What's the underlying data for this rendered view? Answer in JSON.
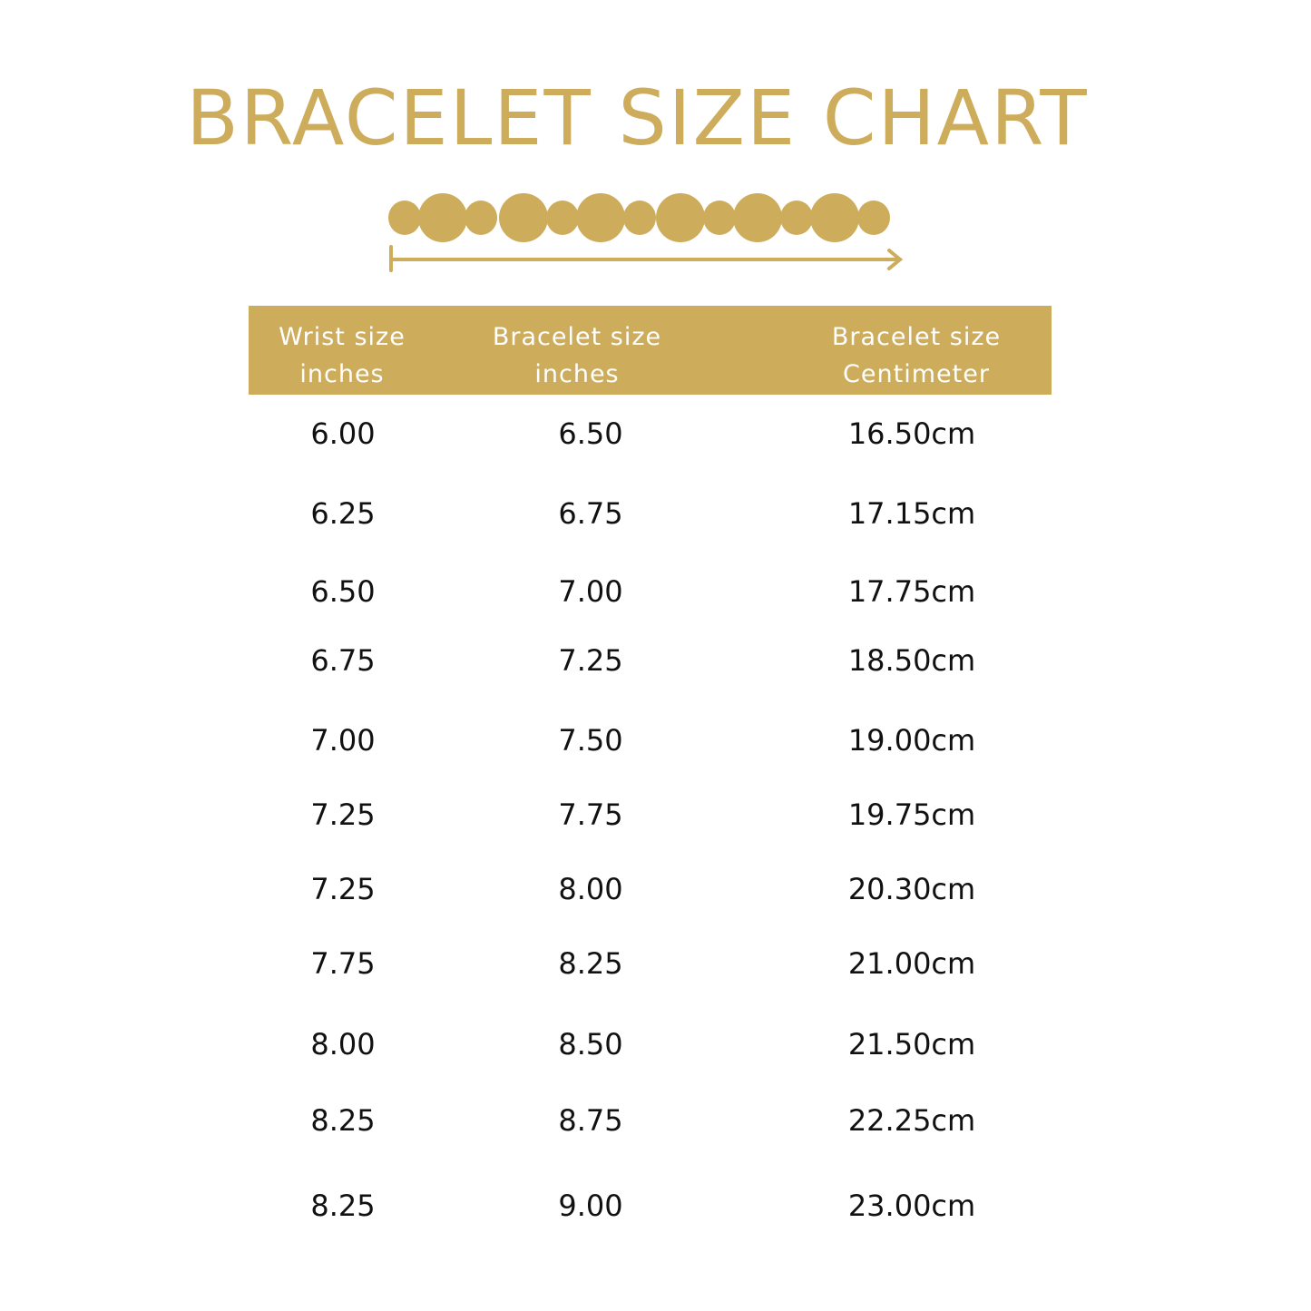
{
  "title": "BRACELET SIZE CHART",
  "colors": {
    "accent": "#CDAC5B",
    "text": "#111111"
  },
  "icons": {
    "decoration": "bead-bracelet-icon",
    "measure": "arrow-right-icon"
  },
  "table": {
    "headers": [
      {
        "line1": "Wrist size",
        "line2": "inches"
      },
      {
        "line1": "Bracelet size",
        "line2": "inches"
      },
      {
        "line1": "Bracelet size",
        "line2": "Centimeter"
      }
    ],
    "rows": [
      [
        "6.00",
        "6.50",
        "16.50cm"
      ],
      [
        "6.25",
        "6.75",
        "17.15cm"
      ],
      [
        "6.50",
        "7.00",
        "17.75cm"
      ],
      [
        "6.75",
        "7.25",
        "18.50cm"
      ],
      [
        "7.00",
        "7.50",
        "19.00cm"
      ],
      [
        "7.25",
        "7.75",
        "19.75cm"
      ],
      [
        "7.25",
        "8.00",
        "20.30cm"
      ],
      [
        "7.75",
        "8.25",
        "21.00cm"
      ],
      [
        "8.00",
        "8.50",
        "21.50cm"
      ],
      [
        "8.25",
        "8.75",
        "22.25cm"
      ],
      [
        "8.25",
        "9.00",
        "23.00cm"
      ]
    ]
  }
}
